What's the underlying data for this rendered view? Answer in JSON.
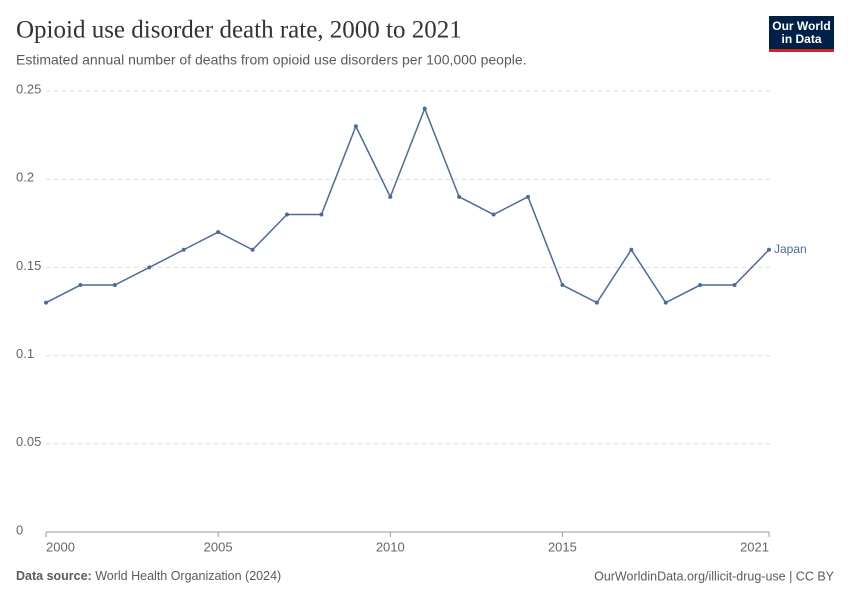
{
  "chart_data": {
    "type": "line",
    "title": "Opioid use disorder death rate, 2000 to 2021",
    "subtitle": "Estimated annual number of deaths from opioid use disorders per 100,000 people.",
    "logo": [
      "Our World",
      "in Data"
    ],
    "source_label": "Data source:",
    "source": "World Health Organization (2024)",
    "url": "OurWorldinData.org/illicit-drug-use | CC BY",
    "x": [
      2000,
      2001,
      2002,
      2003,
      2004,
      2005,
      2006,
      2007,
      2008,
      2009,
      2010,
      2011,
      2012,
      2013,
      2014,
      2015,
      2016,
      2017,
      2018,
      2019,
      2020,
      2021
    ],
    "series": [
      {
        "name": "Japan",
        "color": "#4c6a9c",
        "values": [
          0.13,
          0.14,
          0.14,
          0.15,
          0.16,
          0.17,
          0.16,
          0.18,
          0.18,
          0.23,
          0.19,
          0.24,
          0.19,
          0.18,
          0.19,
          0.14,
          0.13,
          0.16,
          0.13,
          0.14,
          0.14,
          0.16
        ]
      }
    ],
    "xlim": [
      2000,
      2021
    ],
    "xticks": [
      2000,
      2005,
      2010,
      2015,
      2021
    ],
    "ylim": [
      0,
      0.25
    ],
    "yticks": [
      0,
      0.05,
      0.1,
      0.15,
      0.2,
      0.25
    ],
    "grid": true
  }
}
